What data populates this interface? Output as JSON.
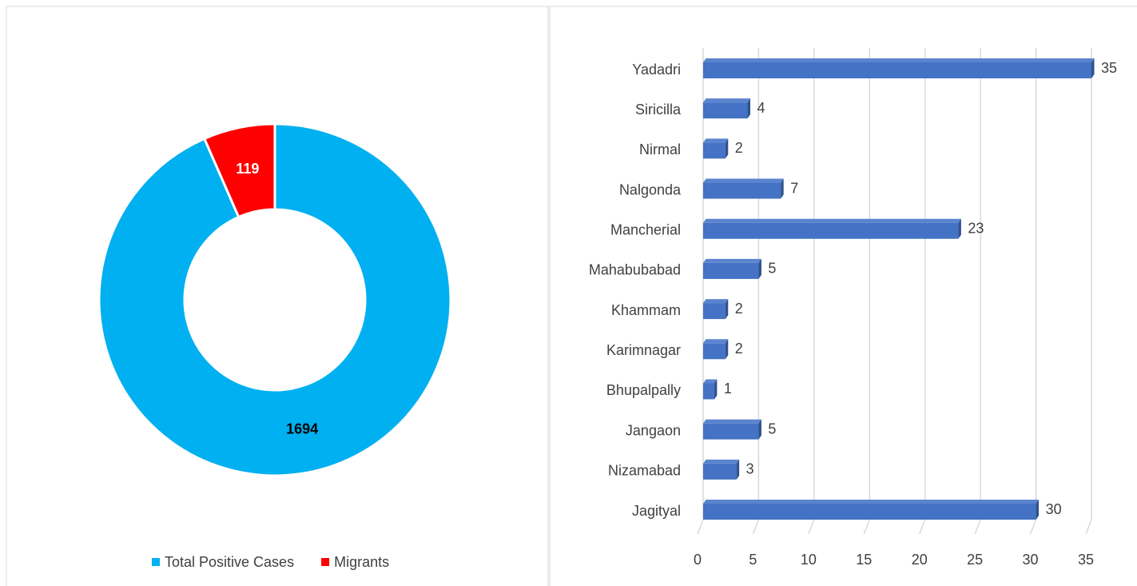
{
  "chart_data": [
    {
      "type": "doughnut",
      "categories": [
        "Total Positive Cases",
        "Migrants"
      ],
      "values": [
        1694,
        119
      ],
      "colors": [
        "#00b0f0",
        "#ff0000"
      ],
      "legend": "bottom"
    },
    {
      "type": "bar3d",
      "orientation": "horizontal",
      "categories": [
        "Yadadri",
        "Siricilla",
        "Nirmal",
        "Nalgonda",
        "Mancherial",
        "Mahabubabad",
        "Khammam",
        "Karimnagar",
        "Bhupalpally",
        "Jangaon",
        "Nizamabad",
        "Jagityal"
      ],
      "values": [
        35,
        4,
        2,
        7,
        23,
        5,
        2,
        2,
        1,
        5,
        3,
        30
      ],
      "color": "#4472c4",
      "xlim": [
        0,
        35
      ],
      "xticks": [
        0,
        5,
        10,
        15,
        20,
        25,
        30,
        35
      ],
      "grid": true
    }
  ]
}
